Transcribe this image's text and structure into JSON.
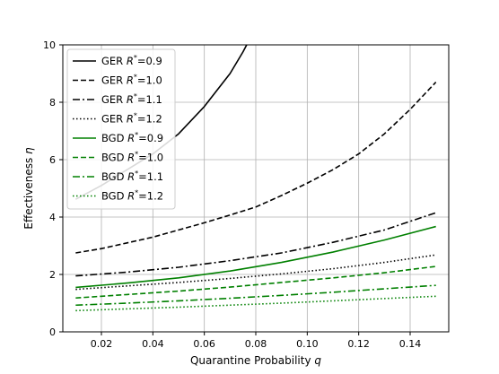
{
  "chart_data": {
    "type": "line",
    "xlabel": "Quarantine Probability",
    "xlabel_var": "q",
    "ylabel": "Effectiveness",
    "ylabel_var": "η",
    "xlim": [
      0.005,
      0.155
    ],
    "ylim": [
      0,
      10
    ],
    "xticks": [
      "0.02",
      "0.04",
      "0.06",
      "0.08",
      "0.10",
      "0.12",
      "0.14"
    ],
    "yticks": [
      "0",
      "2",
      "4",
      "6",
      "8",
      "10"
    ],
    "grid": true,
    "legend_position": "top-left",
    "colors": {
      "GER": "#000000",
      "BGD": "#008000"
    },
    "series": [
      {
        "name": "GER R*=0.9",
        "legend_prefix": "GER",
        "r_value": "0.9",
        "style": "solid",
        "color": "#000000",
        "x": [
          0.01,
          0.02,
          0.03,
          0.04,
          0.05,
          0.06,
          0.07,
          0.075,
          0.08
        ],
        "y": [
          4.62,
          5.1,
          5.65,
          6.2,
          6.9,
          7.85,
          9.0,
          9.75,
          10.6
        ]
      },
      {
        "name": "GER R*=1.0",
        "legend_prefix": "GER",
        "r_value": "1.0",
        "style": "dashed",
        "color": "#000000",
        "x": [
          0.01,
          0.02,
          0.03,
          0.04,
          0.05,
          0.06,
          0.07,
          0.08,
          0.09,
          0.1,
          0.11,
          0.12,
          0.13,
          0.14,
          0.15
        ],
        "y": [
          2.75,
          2.9,
          3.1,
          3.3,
          3.55,
          3.8,
          4.07,
          4.35,
          4.75,
          5.18,
          5.65,
          6.2,
          6.9,
          7.75,
          8.7
        ]
      },
      {
        "name": "GER R*=1.1",
        "legend_prefix": "GER",
        "r_value": "1.1",
        "style": "dashdot",
        "color": "#000000",
        "x": [
          0.01,
          0.03,
          0.05,
          0.07,
          0.09,
          0.11,
          0.13,
          0.15
        ],
        "y": [
          1.95,
          2.08,
          2.25,
          2.48,
          2.75,
          3.12,
          3.55,
          4.15
        ]
      },
      {
        "name": "GER R*=1.2",
        "legend_prefix": "GER",
        "r_value": "1.2",
        "style": "dotted",
        "color": "#000000",
        "x": [
          0.01,
          0.03,
          0.05,
          0.07,
          0.09,
          0.11,
          0.13,
          0.15
        ],
        "y": [
          1.48,
          1.6,
          1.72,
          1.86,
          2.02,
          2.2,
          2.42,
          2.68
        ]
      },
      {
        "name": "BGD R*=0.9",
        "legend_prefix": "BGD",
        "r_value": "0.9",
        "style": "solid",
        "color": "#008000",
        "x": [
          0.01,
          0.03,
          0.05,
          0.07,
          0.09,
          0.11,
          0.13,
          0.15
        ],
        "y": [
          1.55,
          1.7,
          1.88,
          2.12,
          2.42,
          2.78,
          3.2,
          3.67
        ]
      },
      {
        "name": "BGD R*=1.0",
        "legend_prefix": "BGD",
        "r_value": "1.0",
        "style": "dashed",
        "color": "#008000",
        "x": [
          0.01,
          0.03,
          0.05,
          0.07,
          0.09,
          0.11,
          0.13,
          0.15
        ],
        "y": [
          1.18,
          1.3,
          1.42,
          1.56,
          1.72,
          1.88,
          2.06,
          2.28
        ]
      },
      {
        "name": "BGD R*=1.1",
        "legend_prefix": "BGD",
        "r_value": "1.1",
        "style": "dashdot",
        "color": "#008000",
        "x": [
          0.01,
          0.03,
          0.05,
          0.07,
          0.09,
          0.11,
          0.13,
          0.15
        ],
        "y": [
          0.93,
          1.0,
          1.08,
          1.17,
          1.27,
          1.38,
          1.5,
          1.62
        ]
      },
      {
        "name": "BGD R*=1.2",
        "legend_prefix": "BGD",
        "r_value": "1.2",
        "style": "dotted",
        "color": "#008000",
        "x": [
          0.01,
          0.03,
          0.05,
          0.07,
          0.09,
          0.11,
          0.13,
          0.15
        ],
        "y": [
          0.74,
          0.8,
          0.86,
          0.93,
          1.0,
          1.08,
          1.16,
          1.24
        ]
      }
    ]
  }
}
